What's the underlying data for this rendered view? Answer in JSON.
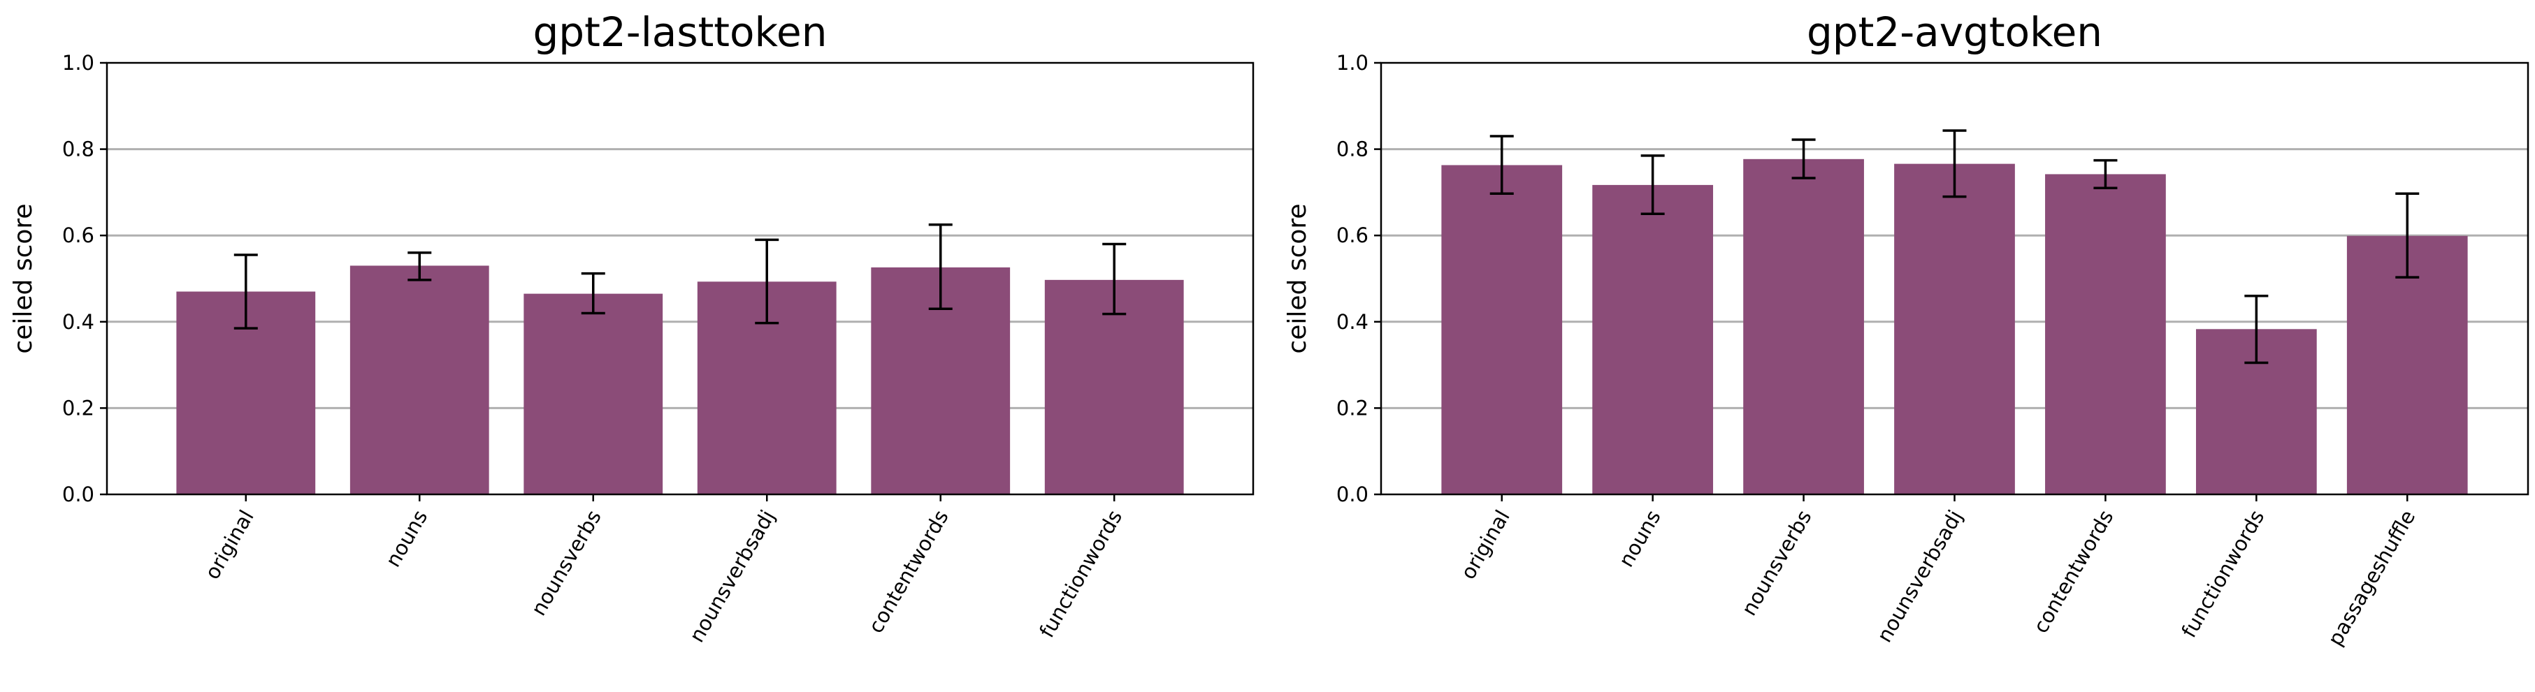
{
  "colors": {
    "bar": "#8b4c78",
    "grid": "#b0b0b0",
    "axis": "#000000",
    "error_bar": "#000000"
  },
  "chart_data": [
    {
      "type": "bar",
      "title": "gpt2-lasttoken",
      "ylabel": "ceiled score",
      "xlabel": "",
      "ylim": [
        0,
        1.0
      ],
      "yticks": [
        "0.0",
        "0.2",
        "0.4",
        "0.6",
        "0.8",
        "1.0"
      ],
      "grid": "horizontal",
      "categories": [
        "original",
        "nouns",
        "nounsverbs",
        "nounsverbsadj",
        "contentwords",
        "functionwords"
      ],
      "values": [
        0.47,
        0.53,
        0.465,
        0.493,
        0.526,
        0.497
      ],
      "error_low": [
        0.385,
        0.497,
        0.42,
        0.397,
        0.43,
        0.418
      ],
      "error_high": [
        0.555,
        0.56,
        0.512,
        0.59,
        0.625,
        0.58
      ]
    },
    {
      "type": "bar",
      "title": "gpt2-avgtoken",
      "ylabel": "ceiled score",
      "xlabel": "",
      "ylim": [
        0,
        1.0
      ],
      "yticks": [
        "0.0",
        "0.2",
        "0.4",
        "0.6",
        "0.8",
        "1.0"
      ],
      "grid": "horizontal",
      "categories": [
        "original",
        "nouns",
        "nounsverbs",
        "nounsverbsadj",
        "contentwords",
        "functionwords",
        "passageshuffle"
      ],
      "values": [
        0.763,
        0.717,
        0.777,
        0.766,
        0.742,
        0.383,
        0.599
      ],
      "error_low": [
        0.697,
        0.65,
        0.733,
        0.69,
        0.71,
        0.305,
        0.503
      ],
      "error_high": [
        0.83,
        0.785,
        0.822,
        0.843,
        0.774,
        0.46,
        0.697
      ]
    }
  ]
}
